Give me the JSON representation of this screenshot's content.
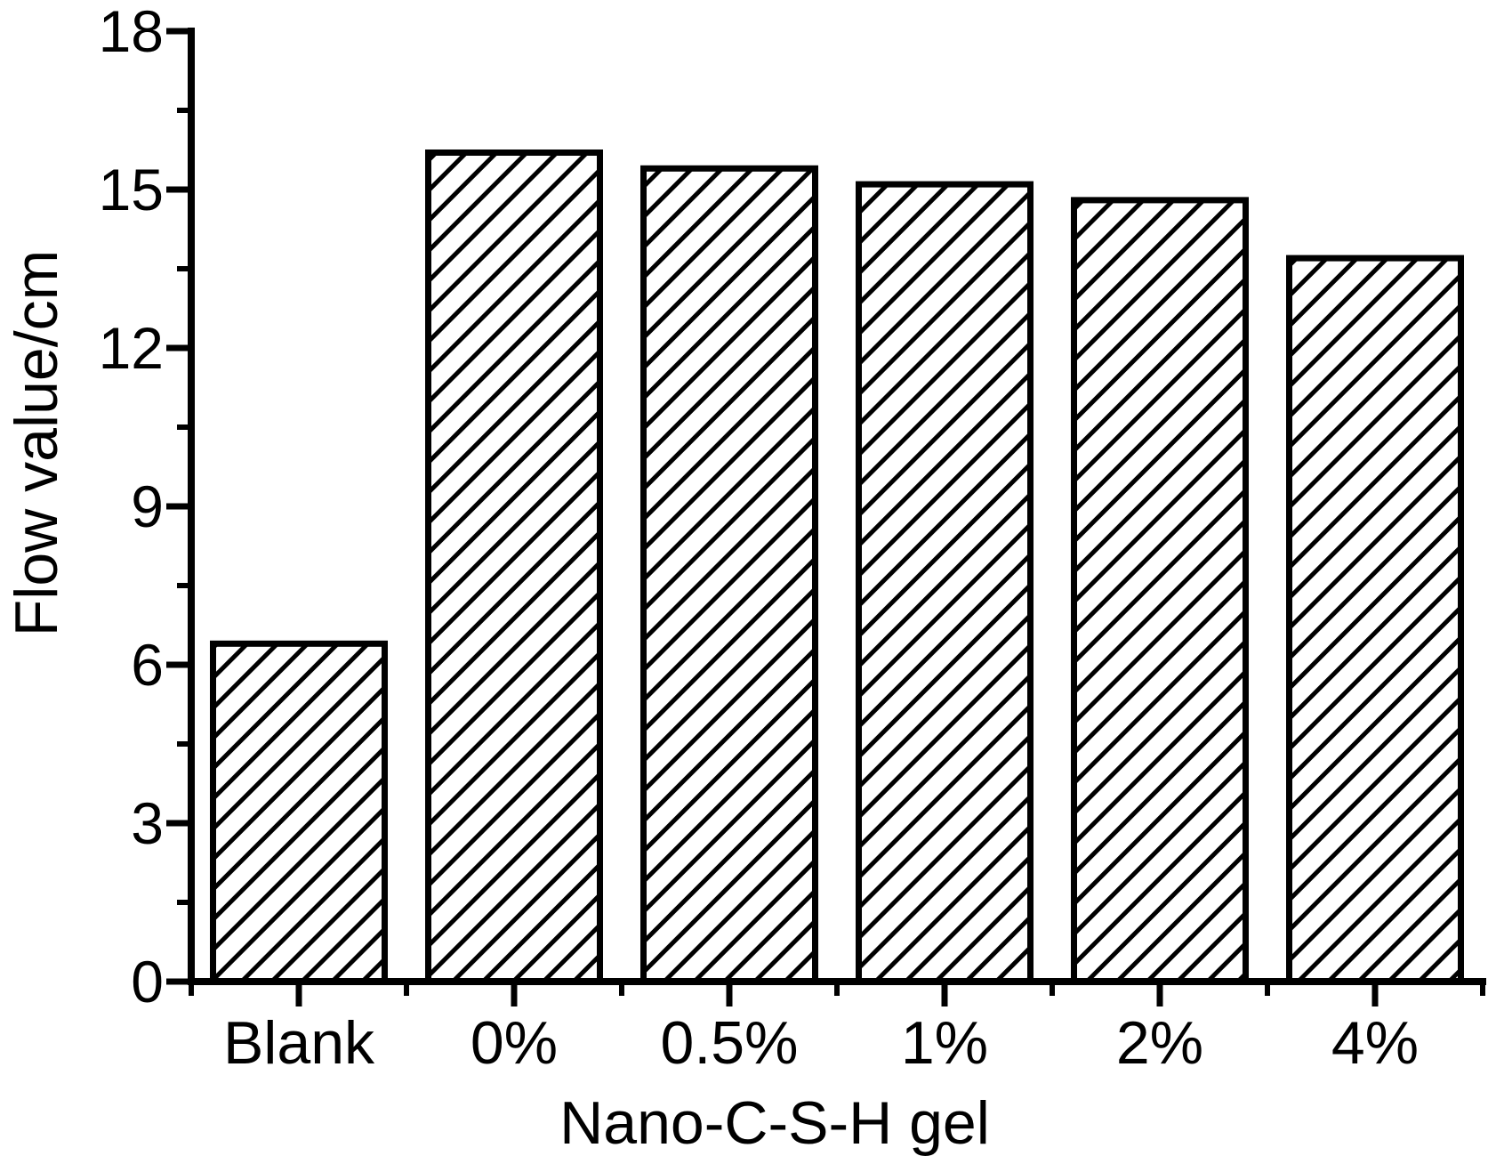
{
  "figure": {
    "background_color": "#ffffff",
    "line_color": "#000000"
  },
  "chart_data": {
    "type": "bar",
    "categories": [
      "Blank",
      "0%",
      "0.5%",
      "1%",
      "2%",
      "4%"
    ],
    "values": [
      6.4,
      15.7,
      15.4,
      15.1,
      14.8,
      13.7
    ],
    "xlabel": "Nano-C-S-H gel",
    "ylabel": "Flow value/cm",
    "ylim": [
      0,
      18
    ],
    "yticks": [
      0,
      3,
      6,
      9,
      12,
      15,
      18
    ],
    "y_minor_step": 1.5,
    "grid": false,
    "legend": "none",
    "bar_style": {
      "fill": "diagonal-hatch",
      "hatch_direction": "forward-slash",
      "stroke_color": "#000000",
      "fill_background": "#ffffff"
    }
  }
}
